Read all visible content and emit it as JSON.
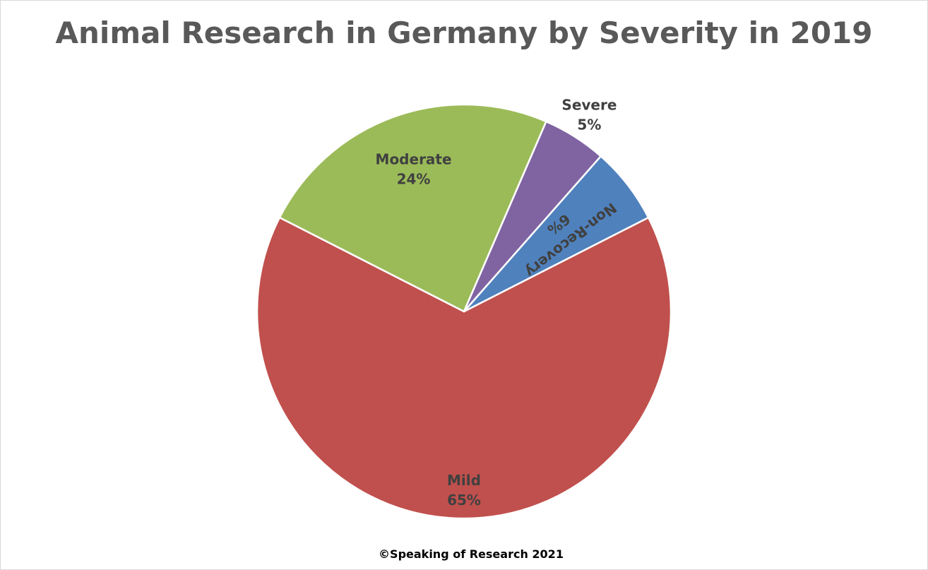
{
  "chart_data": {
    "type": "pie",
    "title": "Animal Research in Germany by Severity in 2019",
    "categories": [
      "Mild",
      "Moderate",
      "Severe",
      "Non-Recovery"
    ],
    "values": [
      65,
      24,
      5,
      6
    ],
    "percent_labels": [
      "65%",
      "24%",
      "5%",
      "6%"
    ],
    "colors": [
      "#c0504d",
      "#9bbb59",
      "#8064a2",
      "#4f81bd"
    ],
    "start_angle_deg": -27,
    "direction": "clockwise",
    "legend": "none",
    "data_labels": "category-and-percent"
  },
  "footer": {
    "credit": "©Speaking of Research 2021"
  }
}
